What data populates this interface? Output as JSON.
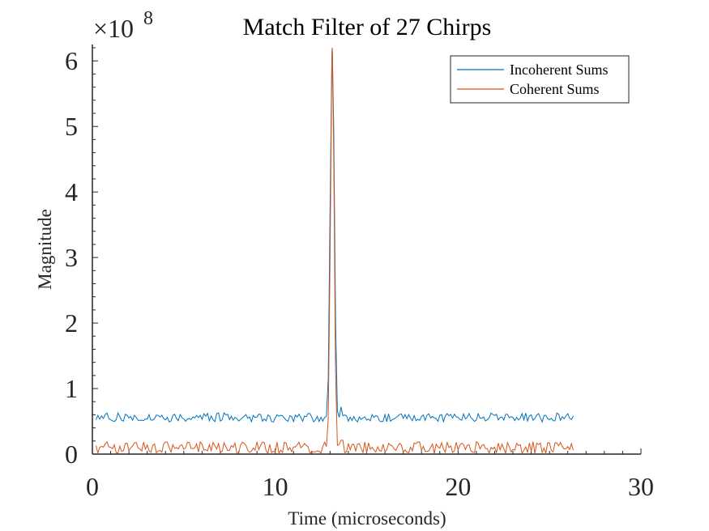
{
  "chart_data": {
    "type": "line",
    "title": "Match Filter of 27 Chirps",
    "xlabel": "Time (microseconds)",
    "ylabel": "Magnitude",
    "y_exponent_label": "×10",
    "y_exponent": "8",
    "xlim": [
      0,
      30
    ],
    "ylim": [
      0,
      6.25
    ],
    "x_ticks": [
      0,
      10,
      20,
      30
    ],
    "y_ticks": [
      0,
      1,
      2,
      3,
      4,
      5,
      6
    ],
    "grid": false,
    "legend_position": "top-right",
    "noise_seed": 27,
    "series": [
      {
        "name": "Incoherent Sums",
        "color": "#0072BD",
        "x_start": 0.2,
        "x_end": 26.3,
        "sample_step": 0.1,
        "baseline": 0.56,
        "noise_amplitude": 0.07,
        "peak_x": 13.12,
        "peak_value": 6.2,
        "peak_width": 0.12,
        "sidelobes": [
          [
            13.35,
            0.93
          ],
          [
            12.9,
            0.75
          ],
          [
            13.6,
            0.72
          ]
        ]
      },
      {
        "name": "Coherent Sums",
        "color": "#D95319",
        "x_start": 0.2,
        "x_end": 26.3,
        "sample_step": 0.1,
        "baseline": 0.1,
        "noise_amplitude": 0.09,
        "peak_x": 13.12,
        "peak_value": 6.2,
        "peak_width": 0.1,
        "sidelobes": [
          [
            13.35,
            0.05
          ],
          [
            12.95,
            0.38
          ],
          [
            13.65,
            0.3
          ]
        ]
      }
    ]
  }
}
